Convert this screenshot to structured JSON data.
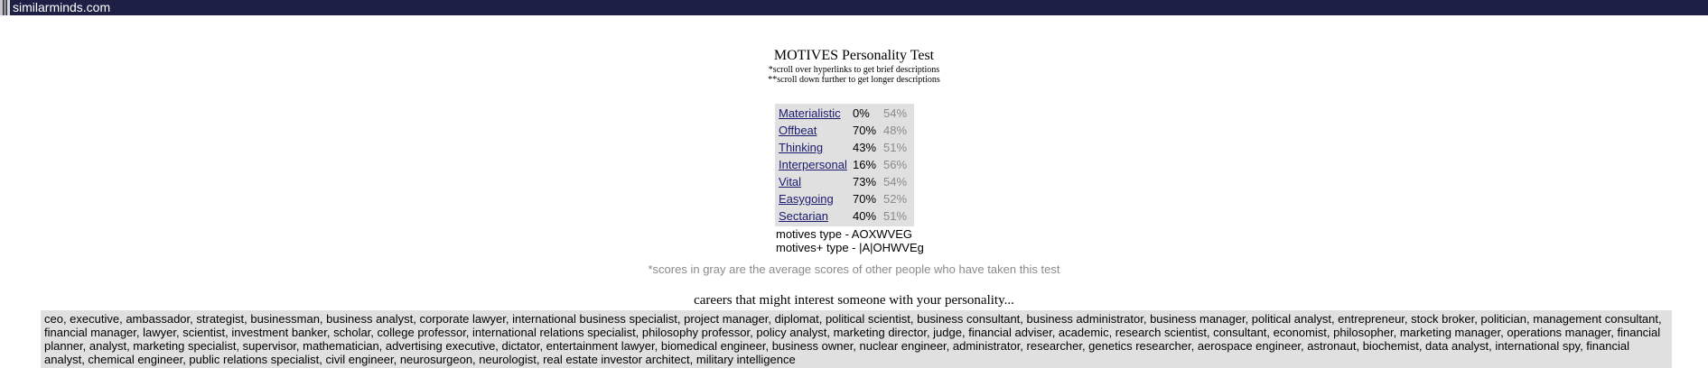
{
  "site": {
    "name": "similarminds.com",
    "bar_color": "#1e1f45"
  },
  "page": {
    "title": "MOTIVES Personality Test",
    "note1": "*scroll over hyperlinks to get brief descriptions",
    "note2": "**scroll down further to get longer descriptions"
  },
  "scores": [
    {
      "trait": "Materialistic",
      "score": "0%",
      "average": "54%"
    },
    {
      "trait": "Offbeat",
      "score": "70%",
      "average": "48%"
    },
    {
      "trait": "Thinking",
      "score": "43%",
      "average": "51%"
    },
    {
      "trait": "Interpersonal",
      "score": "16%",
      "average": "56%"
    },
    {
      "trait": "Vital",
      "score": "73%",
      "average": "54%"
    },
    {
      "trait": "Easygoing",
      "score": "70%",
      "average": "52%"
    },
    {
      "trait": "Sectarian",
      "score": "40%",
      "average": "51%"
    }
  ],
  "types": {
    "motives_type": "motives type - AOXWVEG",
    "motives_plus_type": "motives+ type - |A|OHWVEg"
  },
  "gray_note": "*scores in gray are the average scores of other people who have taken this test",
  "careers": {
    "title": "careers that might interest someone with your personality...",
    "list": "ceo, executive, ambassador, strategist, businessman, business analyst, corporate lawyer, international business specialist, project manager, diplomat, political scientist, business consultant, business administrator, business manager, political analyst, entrepreneur, stock broker, politician, management consultant, financial manager, lawyer, scientist, investment banker, scholar, college professor, international relations specialist, philosophy professor, policy analyst, marketing director, judge, financial adviser, academic, research scientist, consultant, economist, philosopher, marketing manager, operations manager, financial planner, analyst, marketing specialist, supervisor, mathematician, advertising executive, dictator, entertainment lawyer, biomedical engineer, business owner, nuclear engineer, administrator, researcher, genetics researcher, aerospace engineer, astronaut, biochemist, data analyst, international spy, financial analyst, chemical engineer, public relations specialist, civil engineer, neurosurgeon, neurologist, real estate investor architect, military intelligence"
  }
}
